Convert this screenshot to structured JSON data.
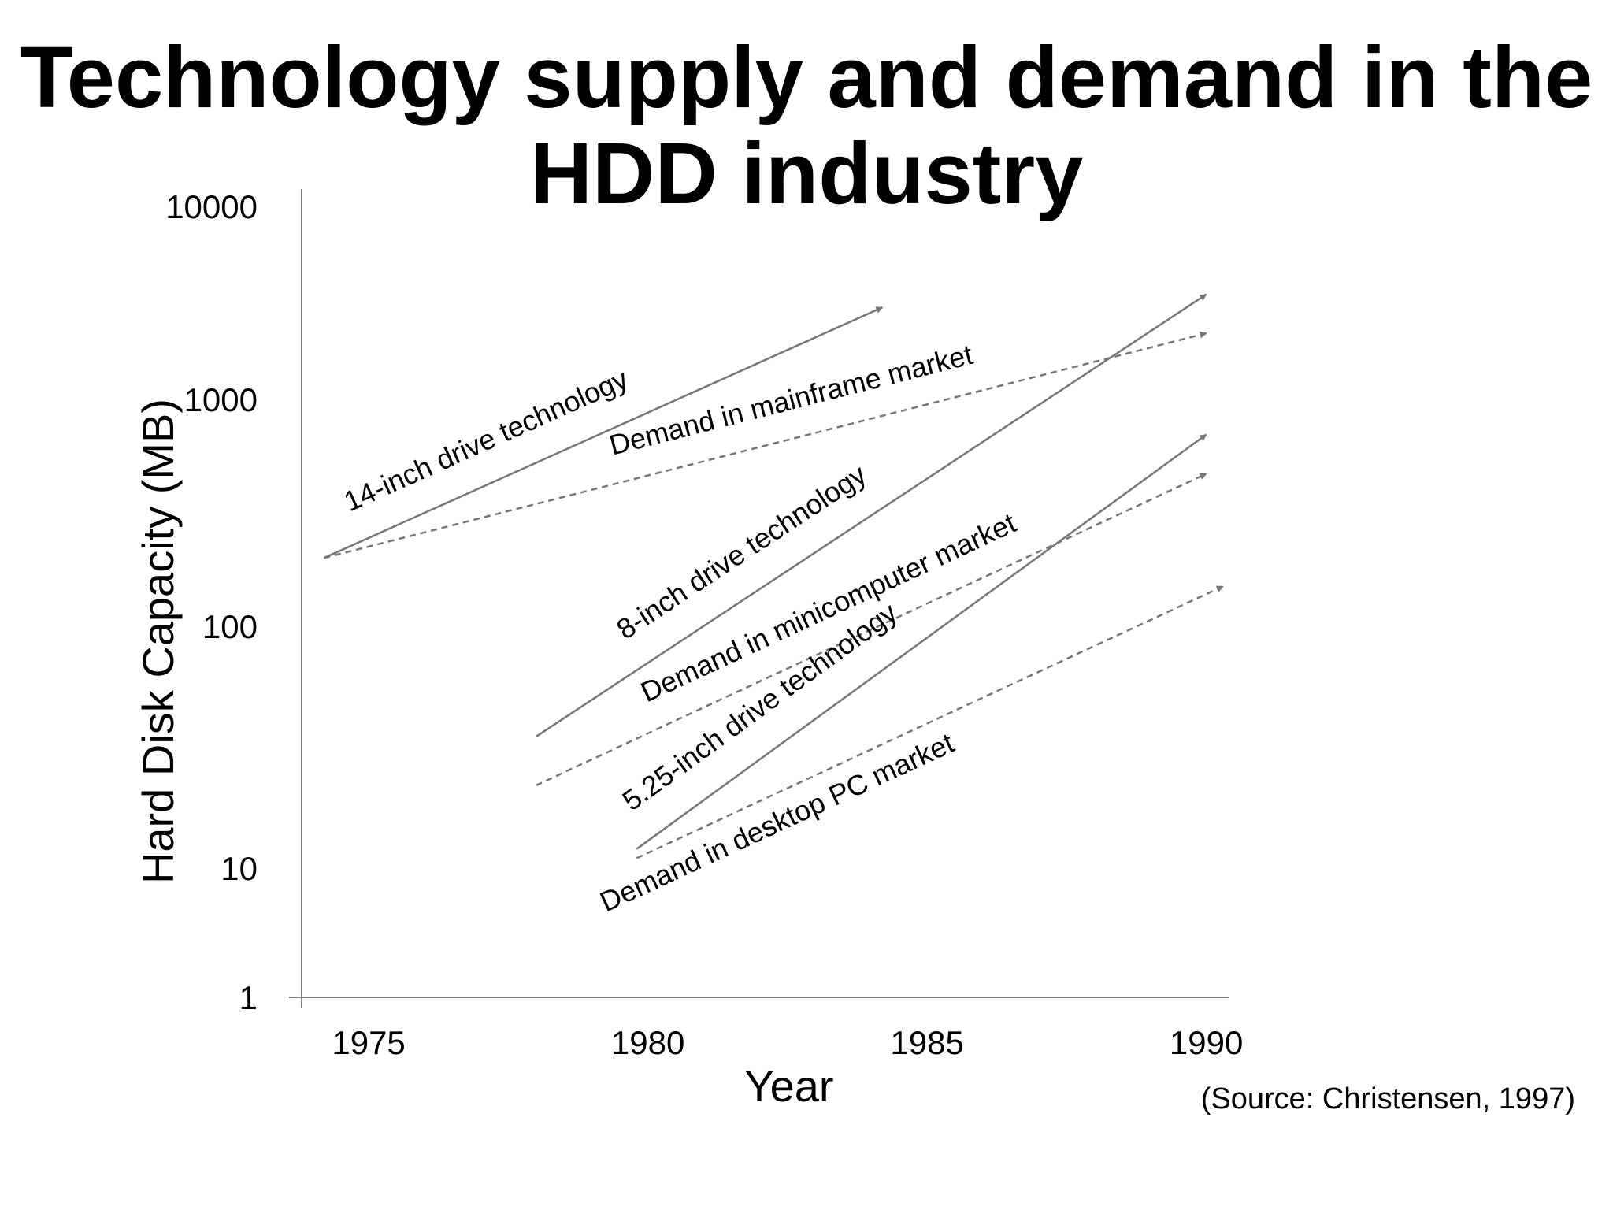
{
  "title_lines": [
    "Technology supply and demand in the",
    "HDD industry"
  ],
  "source_note": "(Source: Christensen, 1997)",
  "chart_data": {
    "type": "line",
    "xlabel": "Year",
    "ylabel": "Hard Disk Capacity (MB)",
    "yscale": "log",
    "xlim": [
      1973.8,
      1990.4
    ],
    "ylim": [
      1,
      10000
    ],
    "xticks": [
      "1975",
      "1980",
      "1985",
      "1990"
    ],
    "yticks": [
      "1",
      "10",
      "100",
      "1000",
      "10000"
    ],
    "grid": false,
    "legend": "none",
    "series": [
      {
        "name": "14-inch drive technology",
        "style": "solid",
        "x": [
          1974.2,
          1984.2
        ],
        "y": [
          200,
          3000
        ]
      },
      {
        "name": "Demand in mainframe market",
        "style": "dashed",
        "x": [
          1974.2,
          1990.0
        ],
        "y": [
          200,
          2200
        ]
      },
      {
        "name": "8-inch drive technology",
        "style": "solid",
        "x": [
          1978.0,
          1990.0
        ],
        "y": [
          35,
          3500
        ]
      },
      {
        "name": "Demand in minicomputer market",
        "style": "dashed",
        "x": [
          1978.0,
          1990.0
        ],
        "y": [
          22,
          470
        ]
      },
      {
        "name": "5.25-inch drive technology",
        "style": "solid",
        "x": [
          1979.8,
          1990.0
        ],
        "y": [
          12,
          700
        ]
      },
      {
        "name": "Demand in desktop PC market",
        "style": "dashed",
        "x": [
          1979.8,
          1990.3
        ],
        "y": [
          11,
          150
        ]
      }
    ],
    "colors": {
      "line": "#767676",
      "axis": "#7f7f7f"
    }
  }
}
